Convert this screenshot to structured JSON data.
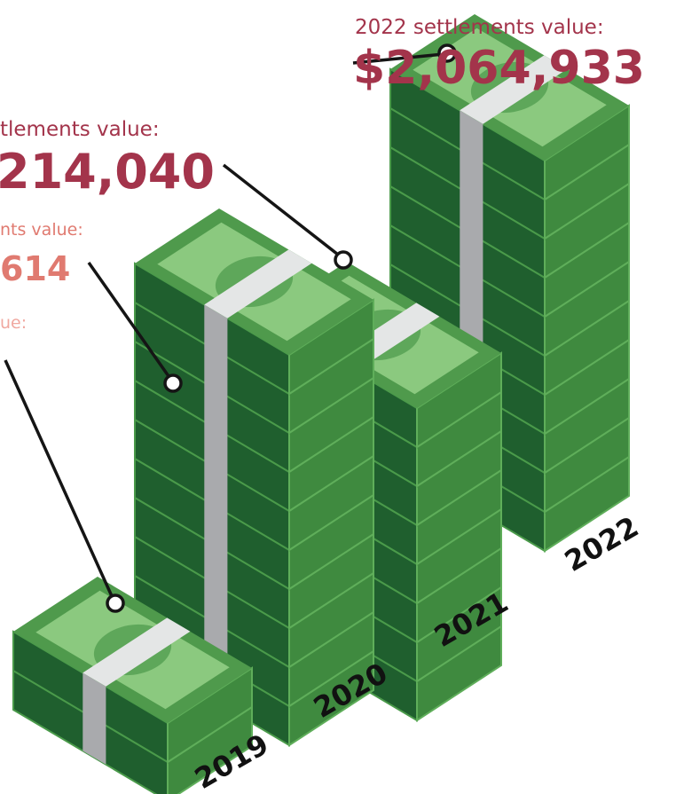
{
  "labels": [
    {
      "heading": "2022 settlements value:",
      "value": "$2,064,933"
    },
    {
      "heading": "tlements value:",
      "value": "214,040"
    },
    {
      "heading": "nts value:",
      "value": "614"
    },
    {
      "heading": "ue:"
    }
  ],
  "years": [
    "2019",
    "2020",
    "2021",
    "2022"
  ]
}
